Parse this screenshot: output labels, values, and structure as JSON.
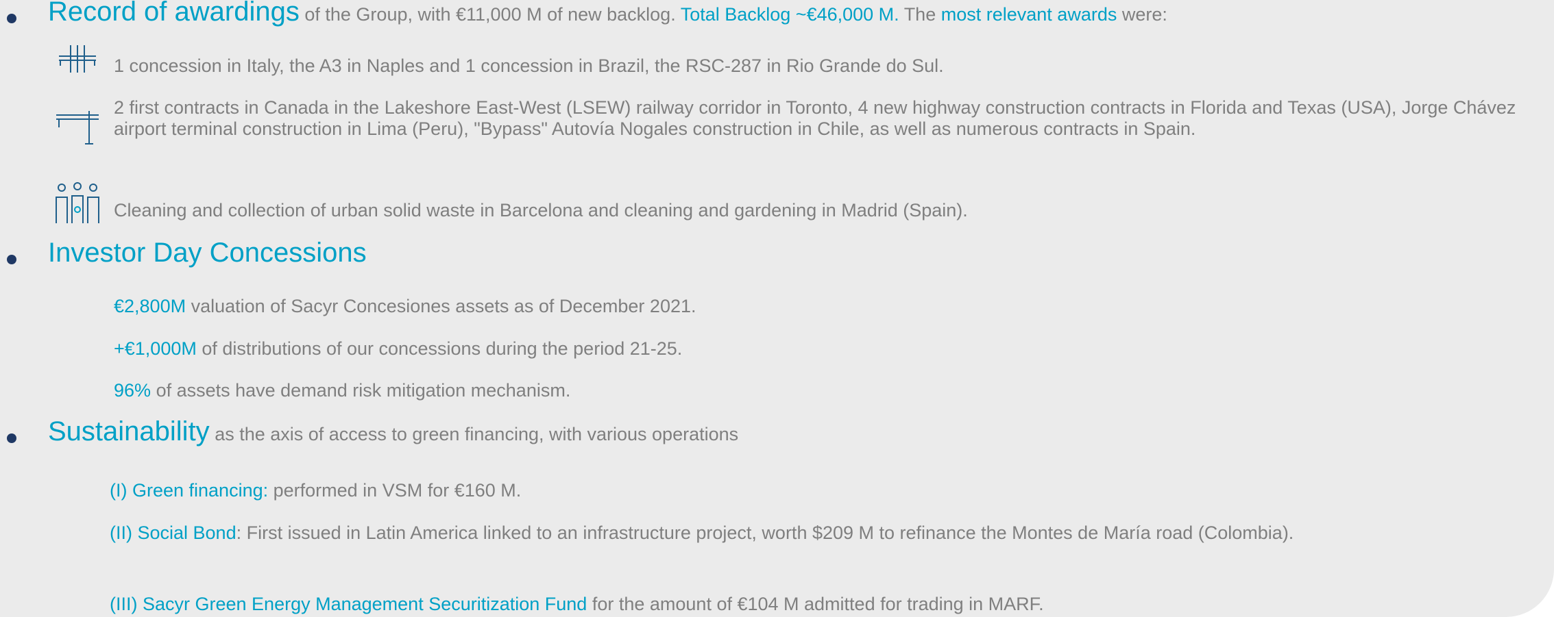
{
  "sections": [
    {
      "heading": "Record of awardings",
      "text": [
        "of the Group, with €11,000 M of new backlog.",
        "Total Backlog  ~€46,000 M.",
        "The",
        "most relevant awards",
        "were:"
      ],
      "items": [
        "1 concession in Italy, the A3 in Naples and 1 concession in Brazil, the RSC-287 in Rio Grande do Sul.",
        "2 first contracts in Canada in the Lakeshore East-West (LSEW) railway corridor in Toronto, 4 new highway construction contracts in Florida and Texas (USA), Jorge Chávez airport terminal construction in Lima (Peru), \"Bypass\" Autovía Nogales construction in Chile, as well as numerous contracts in Spain.",
        "Cleaning and collection of urban solid waste in Barcelona and cleaning and gardening in Madrid (Spain)."
      ]
    },
    {
      "heading": "Investor Day Concessions",
      "items": [
        {
          "highlight": "€2,800M",
          "text": "valuation of Sacyr Concesiones assets as of December 2021."
        },
        {
          "highlight": "+€1,000M",
          "text": "of distributions of our concessions during the period 21-25."
        },
        {
          "highlight": "96%",
          "text": "of assets have demand risk mitigation mechanism."
        }
      ]
    },
    {
      "heading": "Sustainability",
      "text": "as the axis of access to green financing, with various operations",
      "items": [
        {
          "highlight": "(I) Green financing:",
          "text": "performed in VSM for €160 M."
        },
        {
          "highlight": "(II) Social Bond",
          "text": ": First issued in Latin America linked to an infrastructure project, worth $209 M to refinance the Montes de María road (Colombia)."
        },
        {
          "highlight": "(III) Sacyr Green Energy Management Securitization Fund",
          "text": "for the amount of €104 M admitted for trading in MARF."
        }
      ]
    }
  ]
}
